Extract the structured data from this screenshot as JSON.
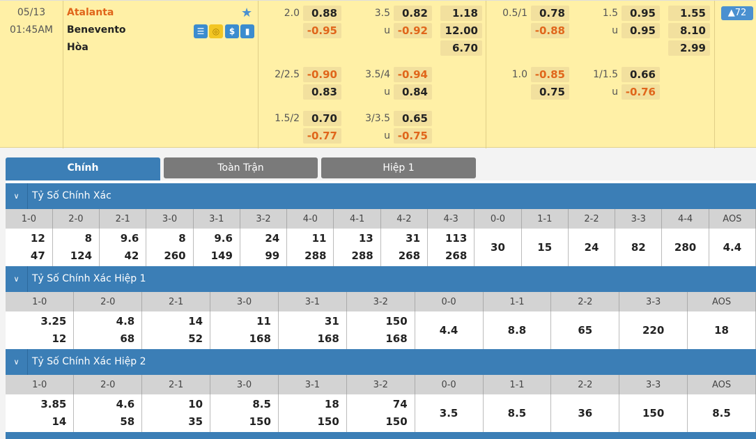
{
  "match": {
    "date": "05/13",
    "time": "01:45AM",
    "home": "Atalanta",
    "away": "Benevento",
    "draw": "Hòa",
    "badge": "▲72",
    "under_label": "u",
    "icons": [
      "scoreboard-icon",
      "coin-icon",
      "dollar-icon",
      "stats-icon"
    ],
    "colors": {
      "negative": "#e0661b",
      "accent": "#3b7eb6",
      "background": "#fff0a6"
    }
  },
  "odds_ft": [
    {
      "hdp": "2.0",
      "home": "0.88",
      "away": "-0.95",
      "ou": "3.5",
      "over": "0.82",
      "under": "-0.92",
      "x12": [
        "1.18",
        "12.00",
        "6.70"
      ]
    },
    {
      "hdp": "2/2.5",
      "home": "-0.90",
      "away": "0.83",
      "ou": "3.5/4",
      "over": "-0.94",
      "under": "0.84"
    },
    {
      "hdp": "1.5/2",
      "home": "0.70",
      "away": "-0.77",
      "ou": "3/3.5",
      "over": "0.65",
      "under": "-0.75"
    }
  ],
  "odds_ht": [
    {
      "hdp": "0.5/1",
      "home": "0.78",
      "away": "-0.88",
      "ou": "1.5",
      "over": "0.95",
      "under": "0.95",
      "x12": [
        "1.55",
        "8.10",
        "2.99"
      ]
    },
    {
      "hdp": "1.0",
      "home": "-0.85",
      "away": "0.75",
      "ou": "1/1.5",
      "over": "0.66",
      "under": "-0.76"
    }
  ],
  "tabs": [
    "Chính",
    "Toàn Trận",
    "Hiệp 1"
  ],
  "sections": [
    {
      "title": "Tỷ Số Chính Xác",
      "cols": [
        "1-0",
        "2-0",
        "2-1",
        "3-0",
        "3-1",
        "3-2",
        "4-0",
        "4-1",
        "4-2",
        "4-3",
        "0-0",
        "1-1",
        "2-2",
        "3-3",
        "4-4",
        "AOS"
      ],
      "vals": [
        [
          "12",
          "47"
        ],
        [
          "8",
          "124"
        ],
        [
          "9.6",
          "42"
        ],
        [
          "8",
          "260"
        ],
        [
          "9.6",
          "149"
        ],
        [
          "24",
          "99"
        ],
        [
          "11",
          "288"
        ],
        [
          "13",
          "288"
        ],
        [
          "31",
          "268"
        ],
        [
          "113",
          "268"
        ],
        [
          "30"
        ],
        [
          "15"
        ],
        [
          "24"
        ],
        [
          "82"
        ],
        [
          "280"
        ],
        [
          "4.4"
        ]
      ]
    },
    {
      "title": "Tỷ Số Chính Xác Hiệp 1",
      "cols": [
        "1-0",
        "2-0",
        "2-1",
        "3-0",
        "3-1",
        "3-2",
        "0-0",
        "1-1",
        "2-2",
        "3-3",
        "AOS"
      ],
      "vals": [
        [
          "3.25",
          "12"
        ],
        [
          "4.8",
          "68"
        ],
        [
          "14",
          "52"
        ],
        [
          "11",
          "168"
        ],
        [
          "31",
          "168"
        ],
        [
          "150",
          "168"
        ],
        [
          "4.4"
        ],
        [
          "8.8"
        ],
        [
          "65"
        ],
        [
          "220"
        ],
        [
          "18"
        ]
      ]
    },
    {
      "title": "Tỷ Số Chính Xác Hiệp 2",
      "cols": [
        "1-0",
        "2-0",
        "2-1",
        "3-0",
        "3-1",
        "3-2",
        "0-0",
        "1-1",
        "2-2",
        "3-3",
        "AOS"
      ],
      "vals": [
        [
          "3.85",
          "14"
        ],
        [
          "4.6",
          "58"
        ],
        [
          "10",
          "35"
        ],
        [
          "8.5",
          "150"
        ],
        [
          "18",
          "150"
        ],
        [
          "74",
          "150"
        ],
        [
          "3.5"
        ],
        [
          "8.5"
        ],
        [
          "36"
        ],
        [
          "150"
        ],
        [
          "8.5"
        ]
      ]
    }
  ]
}
